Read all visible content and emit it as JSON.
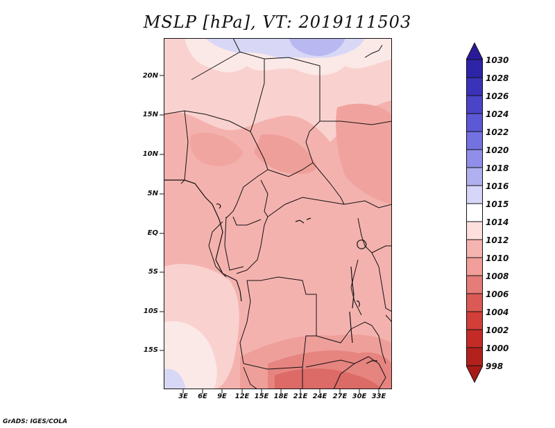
{
  "title": "MSLP [hPa], VT: 2019111503",
  "footer": "GrADS: IGES/COLA",
  "map": {
    "lat_labels": [
      "20N",
      "15N",
      "10N",
      "5N",
      "EQ",
      "5S",
      "10S",
      "15S"
    ],
    "lon_labels": [
      "3E",
      "6E",
      "9E",
      "12E",
      "15E",
      "18E",
      "21E",
      "24E",
      "27E",
      "30E",
      "33E"
    ],
    "region": "Central Africa"
  },
  "colorbar": {
    "levels": [
      "1030",
      "1028",
      "1026",
      "1024",
      "1022",
      "1020",
      "1018",
      "1016",
      "1015",
      "1014",
      "1012",
      "1010",
      "1008",
      "1006",
      "1004",
      "1002",
      "1000",
      "998"
    ],
    "colors": [
      "#2a1a9a",
      "#2e24a8",
      "#3a32b8",
      "#4a44c8",
      "#5c58d6",
      "#7472e0",
      "#908ee8",
      "#b0b0f0",
      "#d6d6f8",
      "#ffffff",
      "#fde0de",
      "#f6b4b0",
      "#f29e9a",
      "#e47c78",
      "#dc5a55",
      "#d23e38",
      "#c42b26",
      "#b3211c",
      "#a81a16"
    ]
  },
  "palette": {
    "p1015": "#d8d8f6",
    "p1014": "#fbe9e8",
    "p1012": "#f9d2cf",
    "p1010": "#f4b2ae",
    "p1008": "#ef9f9a",
    "p1006": "#e68480",
    "p1004": "#dc6a66",
    "p1016": "#b9b8f1",
    "border": "#111111"
  }
}
